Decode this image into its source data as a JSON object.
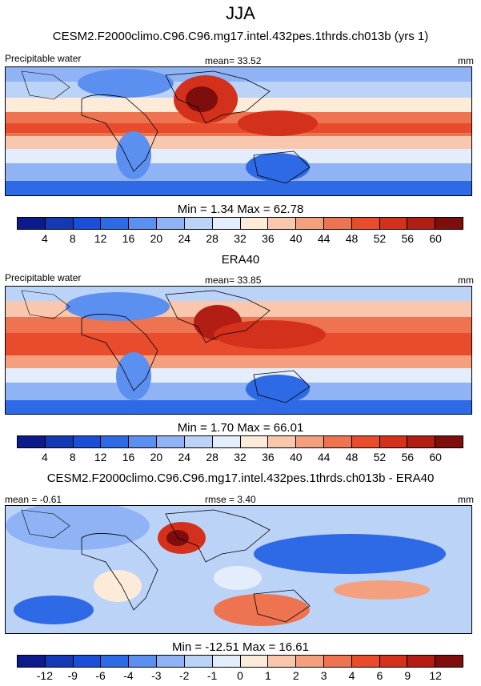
{
  "chart_data": [
    {
      "type": "heatmap",
      "season": "JJA",
      "title": "CESM2.F2000climo.C96.C96.mg17.intel.432pes.1thrds.ch013b (yrs 1)",
      "left_label": "Precipitable water",
      "center_label": "mean=  33.52",
      "right_label": "mm",
      "min_max": "Min =   1.34 Max =  62.78",
      "colorbar_ticks": [
        "4",
        "8",
        "12",
        "16",
        "20",
        "24",
        "28",
        "32",
        "36",
        "40",
        "44",
        "48",
        "52",
        "56",
        "60"
      ],
      "colors": [
        "#0d1a8c",
        "#1538b4",
        "#1c4fd8",
        "#2e6ae6",
        "#5b8ff0",
        "#8fb3f5",
        "#bcd3f8",
        "#e4edfb",
        "#fdebd9",
        "#f9c7ad",
        "#f4a07f",
        "#ee7351",
        "#e84c2c",
        "#d4311c",
        "#b21d14",
        "#7e0d0d"
      ]
    },
    {
      "type": "heatmap",
      "title": "ERA40",
      "left_label": "Precipitable water",
      "center_label": "mean=  33.85",
      "right_label": "mm",
      "min_max": "Min =   1.70 Max =  66.01",
      "colorbar_ticks": [
        "4",
        "8",
        "12",
        "16",
        "20",
        "24",
        "28",
        "32",
        "36",
        "40",
        "44",
        "48",
        "52",
        "56",
        "60"
      ]
    },
    {
      "type": "heatmap",
      "title": "CESM2.F2000climo.C96.C96.mg17.intel.432pes.1thrds.ch013b - ERA40",
      "left_label": "mean =  -0.61",
      "center_label": "rmse =  3.40",
      "right_label": "mm",
      "min_max": "Min = -12.51 Max =  16.61",
      "colorbar_ticks": [
        "-12",
        "-9",
        "-6",
        "-4",
        "-3",
        "-2",
        "-1",
        "0",
        "1",
        "2",
        "3",
        "4",
        "6",
        "9",
        "12"
      ]
    }
  ]
}
